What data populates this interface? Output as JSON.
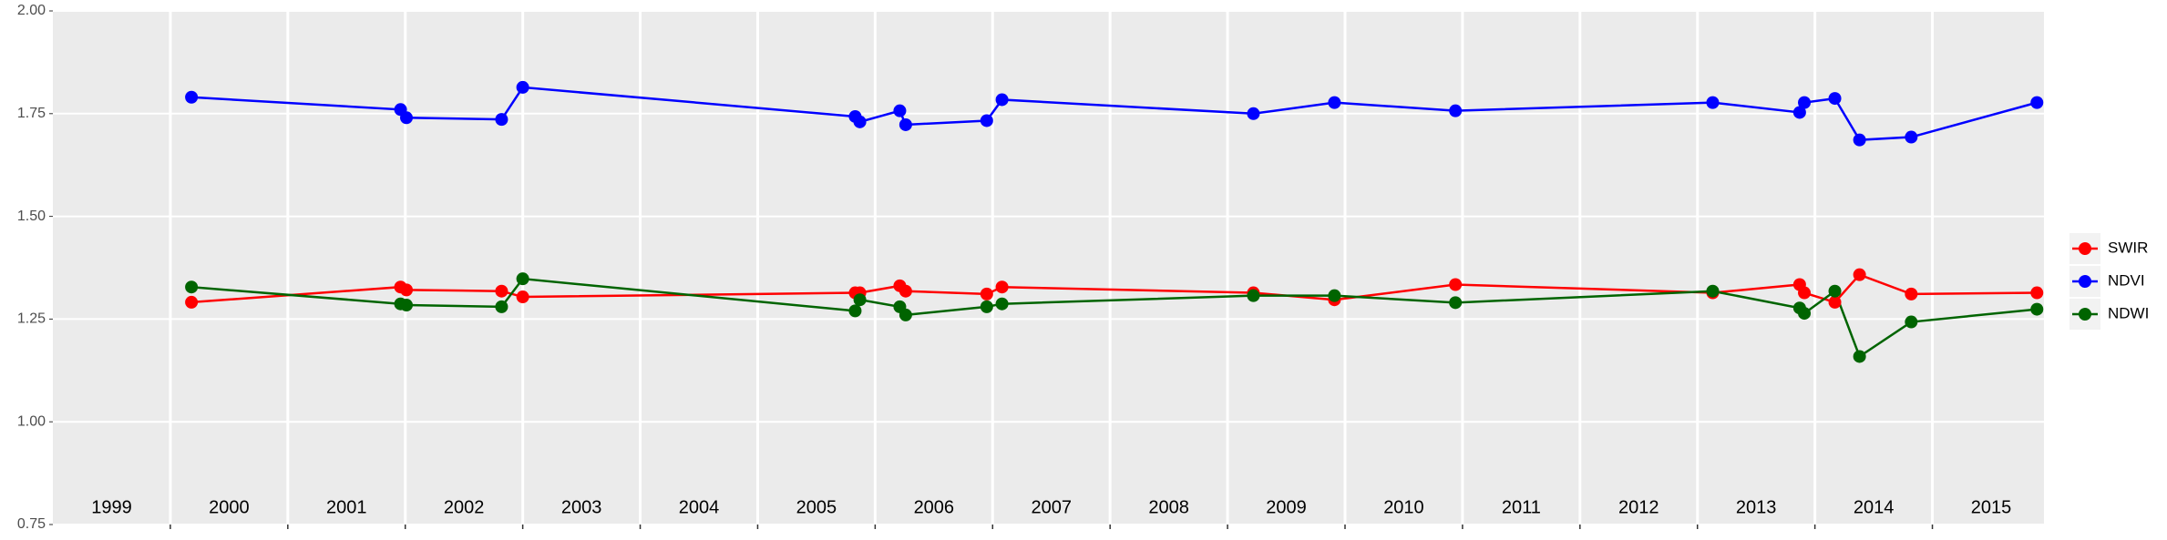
{
  "chart_data": {
    "type": "line",
    "x": [
      2000.18,
      2001.96,
      2002.01,
      2002.82,
      2003.0,
      2005.83,
      2005.87,
      2006.21,
      2006.26,
      2006.95,
      2007.08,
      2009.22,
      2009.91,
      2010.94,
      2013.13,
      2013.87,
      2013.91,
      2014.17,
      2014.38,
      2014.82,
      2015.89
    ],
    "series": [
      {
        "name": "SWIR",
        "color": "#ff0000",
        "values": [
          1.291,
          1.328,
          1.321,
          1.318,
          1.304,
          1.314,
          1.314,
          1.331,
          1.318,
          1.311,
          1.328,
          1.314,
          1.297,
          1.334,
          1.314,
          1.334,
          1.314,
          1.291,
          1.358,
          1.311,
          1.314
        ]
      },
      {
        "name": "NDVI",
        "color": "#0000ff",
        "values": [
          1.79,
          1.76,
          1.74,
          1.736,
          1.814,
          1.743,
          1.73,
          1.757,
          1.723,
          1.733,
          1.784,
          1.75,
          1.777,
          1.757,
          1.777,
          1.753,
          1.777,
          1.787,
          1.686,
          1.693,
          1.777
        ]
      },
      {
        "name": "NDWI",
        "color": "#006400",
        "values": [
          1.328,
          1.287,
          1.284,
          1.28,
          1.348,
          1.27,
          1.297,
          1.28,
          1.26,
          1.28,
          1.287,
          1.307,
          1.307,
          1.29,
          1.318,
          1.277,
          1.264,
          1.318,
          1.159,
          1.243,
          1.274
        ]
      }
    ],
    "xlim": [
      1999.0,
      2015.95
    ],
    "xgrid": [
      2000,
      2001,
      2002,
      2003,
      2004,
      2005,
      2006,
      2007,
      2008,
      2009,
      2010,
      2011,
      2012,
      2013,
      2014,
      2015
    ],
    "xticks": [
      {
        "value": 1999.5,
        "label": "1999"
      },
      {
        "value": 2000.5,
        "label": "2000"
      },
      {
        "value": 2001.5,
        "label": "2001"
      },
      {
        "value": 2002.5,
        "label": "2002"
      },
      {
        "value": 2003.5,
        "label": "2003"
      },
      {
        "value": 2004.5,
        "label": "2004"
      },
      {
        "value": 2005.5,
        "label": "2005"
      },
      {
        "value": 2006.5,
        "label": "2006"
      },
      {
        "value": 2007.5,
        "label": "2007"
      },
      {
        "value": 2008.5,
        "label": "2008"
      },
      {
        "value": 2009.5,
        "label": "2009"
      },
      {
        "value": 2010.5,
        "label": "2010"
      },
      {
        "value": 2011.5,
        "label": "2011"
      },
      {
        "value": 2012.5,
        "label": "2012"
      },
      {
        "value": 2013.5,
        "label": "2013"
      },
      {
        "value": 2014.5,
        "label": "2014"
      },
      {
        "value": 2015.5,
        "label": "2015"
      }
    ],
    "ylim": [
      0.75,
      2.0
    ],
    "yticks": [
      0.75,
      {
        "value": 1.0,
        "label": "1.00"
      },
      1.25,
      {
        "value": 1.5,
        "label": "1.50"
      },
      1.75,
      {
        "value": 2.0,
        "label": "2.00"
      }
    ],
    "grid": true
  }
}
